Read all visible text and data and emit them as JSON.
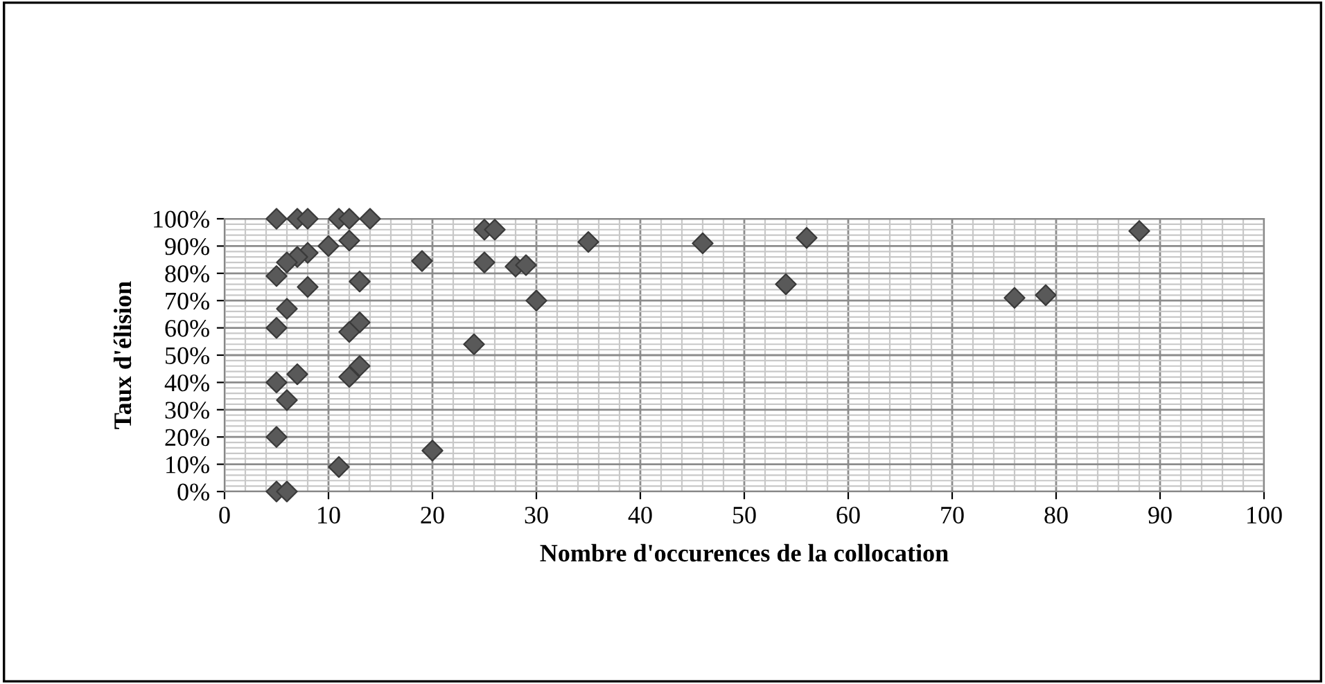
{
  "chart_data": {
    "type": "scatter",
    "xlabel": "Nombre d'occurences de la collocation",
    "ylabel": "Taux d'élision",
    "x": [
      5,
      7,
      8,
      11,
      12,
      14,
      25,
      26,
      35,
      46,
      56,
      88,
      10,
      12,
      8,
      7,
      6,
      5,
      19,
      25,
      28,
      29,
      8,
      13,
      54,
      30,
      76,
      79,
      6,
      5,
      13,
      12,
      24,
      13,
      7,
      12,
      5,
      6,
      5,
      20,
      11,
      5,
      6
    ],
    "values": [
      100,
      100,
      100,
      100,
      100,
      100,
      96,
      96,
      91.5,
      91,
      93,
      95.5,
      90,
      92,
      87.5,
      86,
      84,
      79,
      84.5,
      84,
      82.5,
      83,
      75,
      77,
      76,
      70,
      71,
      72,
      67,
      60,
      62,
      58.5,
      54,
      46,
      43,
      42,
      40,
      33.5,
      20,
      15,
      9,
      0,
      0
    ],
    "color": "#595959",
    "marker": "diamond",
    "xlim": [
      0,
      100
    ],
    "xticks": [
      0,
      10,
      20,
      30,
      40,
      50,
      60,
      70,
      80,
      90,
      100
    ],
    "ylim": [
      0,
      100
    ],
    "yticks": [
      {
        "value": 0,
        "label": "0%"
      },
      {
        "value": 10,
        "label": "10%"
      },
      {
        "value": 20,
        "label": "20%"
      },
      {
        "value": 30,
        "label": "30%"
      },
      {
        "value": 40,
        "label": "40%"
      },
      {
        "value": 50,
        "label": "50%"
      },
      {
        "value": 60,
        "label": "60%"
      },
      {
        "value": 70,
        "label": "70%"
      },
      {
        "value": 80,
        "label": "80%"
      },
      {
        "value": 90,
        "label": "90%"
      },
      {
        "value": 100,
        "label": "100%"
      }
    ],
    "grid": true,
    "legend": false
  }
}
